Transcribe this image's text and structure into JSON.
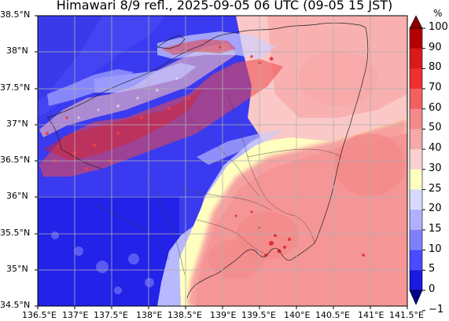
{
  "title": "Himawari 8/9 refl., 2025-09-05 06 UTC (09-05 15 JST)",
  "map": {
    "lon_ticks": [
      "136.5°E",
      "137°E",
      "137.5°E",
      "138°E",
      "138.5°E",
      "139°E",
      "139.5°E",
      "140°E",
      "140.5°E",
      "141°E",
      "141.5°E"
    ],
    "lat_ticks": [
      "38.5°N",
      "38°N",
      "37.5°N",
      "37°N",
      "36.5°N",
      "36°N",
      "35.5°N",
      "35°N",
      "34.5°N"
    ],
    "lon_range": [
      136.5,
      141.5
    ],
    "lat_range": [
      34.5,
      38.5
    ],
    "grid": true
  },
  "colorbar": {
    "unit": "%",
    "labels": [
      "100",
      "90",
      "80",
      "70",
      "60",
      "50",
      "40",
      "30",
      "25",
      "20",
      "15",
      "10",
      "5",
      "0",
      "−1"
    ],
    "colors": [
      "#8b0000",
      "#b40000",
      "#d81a1a",
      "#f03030",
      "#f26060",
      "#f48a8a",
      "#f5a9a9",
      "#fbd0d0",
      "#ffffc0",
      "#d8d8ff",
      "#b0b0ff",
      "#8080ff",
      "#4a4aff",
      "#1a1ae0",
      "#00008b"
    ]
  }
}
